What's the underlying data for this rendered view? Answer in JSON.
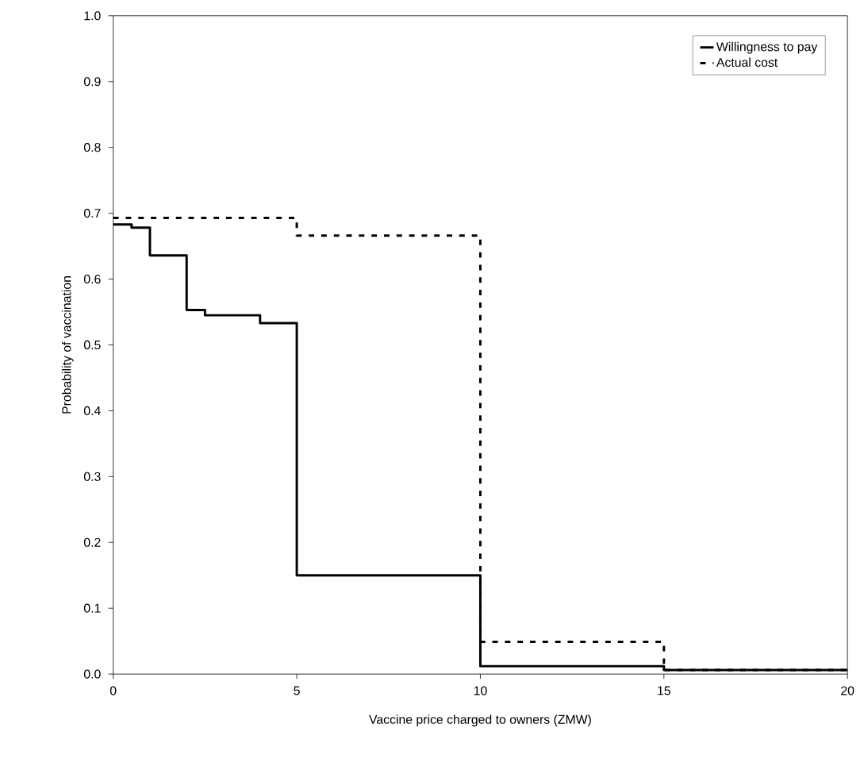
{
  "chart_data": {
    "type": "step",
    "xlabel": "Vaccine price charged to owners (ZMW)",
    "ylabel": "Probability of vaccination",
    "xlim": [
      0,
      20
    ],
    "ylim": [
      0,
      1
    ],
    "xticks": [
      0,
      5,
      10,
      15,
      20
    ],
    "yticks": [
      {
        "value": 0,
        "label": "0.0"
      },
      {
        "value": 0.1,
        "label": "0.1"
      },
      {
        "value": 0.2,
        "label": "0.2"
      },
      {
        "value": 0.3,
        "label": "0.3"
      },
      {
        "value": 0.4,
        "label": "0.4"
      },
      {
        "value": 0.5,
        "label": "0.5"
      },
      {
        "value": 0.6,
        "label": "0.6"
      },
      {
        "value": 0.7,
        "label": "0.7"
      },
      {
        "value": 0.8,
        "label": "0.8"
      },
      {
        "value": 0.9,
        "label": "0.9"
      },
      {
        "value": 1,
        "label": "1.0"
      }
    ],
    "legend": "top right",
    "grid": false,
    "series": [
      {
        "name": "Willingness to pay",
        "color": "#000000",
        "line_style": "solid",
        "x": [
          0,
          0.5,
          1,
          2,
          2.5,
          4,
          5,
          10,
          15,
          20
        ],
        "values": [
          0.683,
          0.678,
          0.636,
          0.553,
          0.545,
          0.533,
          0.15,
          0.012,
          0.006,
          0.006
        ]
      },
      {
        "name": "Actual cost",
        "color": "#000000",
        "line_style": "dashed",
        "x": [
          0,
          5,
          10,
          15,
          20
        ],
        "values": [
          0.693,
          0.666,
          0.049,
          0.006,
          0.006
        ]
      }
    ]
  }
}
